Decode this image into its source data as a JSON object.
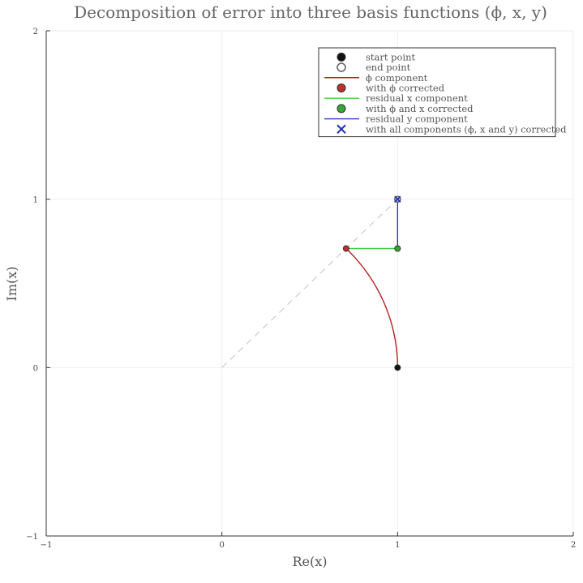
{
  "chart_data": {
    "type": "scatter",
    "title": "Decomposition of error into three basis functions (ϕ, x, y)",
    "xlabel": "Re(x)",
    "ylabel": "Im(x)",
    "xlim": [
      -1,
      2
    ],
    "ylim": [
      -1,
      2
    ],
    "x_ticks": [
      "−1",
      "0",
      "1",
      "2"
    ],
    "y_ticks": [
      "−1",
      "0",
      "1",
      "2"
    ],
    "grid": true,
    "legend_position": "top-right",
    "guide_line": {
      "from": [
        0,
        0
      ],
      "to": [
        1,
        1
      ],
      "color": "#cccccc",
      "style": "dashed"
    },
    "series": [
      {
        "name": "start point",
        "kind": "point",
        "x": 1,
        "y": 0,
        "color": "#111111",
        "marker": "filled-circle"
      },
      {
        "name": "end point",
        "kind": "point",
        "x": 1,
        "y": 1,
        "color": "#666666",
        "marker": "open-circle"
      },
      {
        "name": "ϕ component",
        "kind": "arc",
        "center": [
          0,
          0
        ],
        "radius": 1,
        "angle_start_deg": 0,
        "angle_end_deg": 45,
        "color": "#b22222"
      },
      {
        "name": "with ϕ corrected",
        "kind": "point",
        "x": 0.7071,
        "y": 0.7071,
        "color": "#c0302b",
        "marker": "filled-circle"
      },
      {
        "name": "residual x component",
        "kind": "segment",
        "from": [
          0.7071,
          0.7071
        ],
        "to": [
          1,
          0.7071
        ],
        "color": "#44cc44"
      },
      {
        "name": "with ϕ and x corrected",
        "kind": "point",
        "x": 1,
        "y": 0.7071,
        "color": "#33aa33",
        "marker": "filled-circle"
      },
      {
        "name": "residual y component",
        "kind": "segment",
        "from": [
          1,
          0.7071
        ],
        "to": [
          1,
          1
        ],
        "color": "#3333bb"
      },
      {
        "name": "with all components (ϕ, x and y) corrected",
        "kind": "point",
        "x": 1,
        "y": 1,
        "color": "#2233bb",
        "marker": "x"
      }
    ]
  }
}
